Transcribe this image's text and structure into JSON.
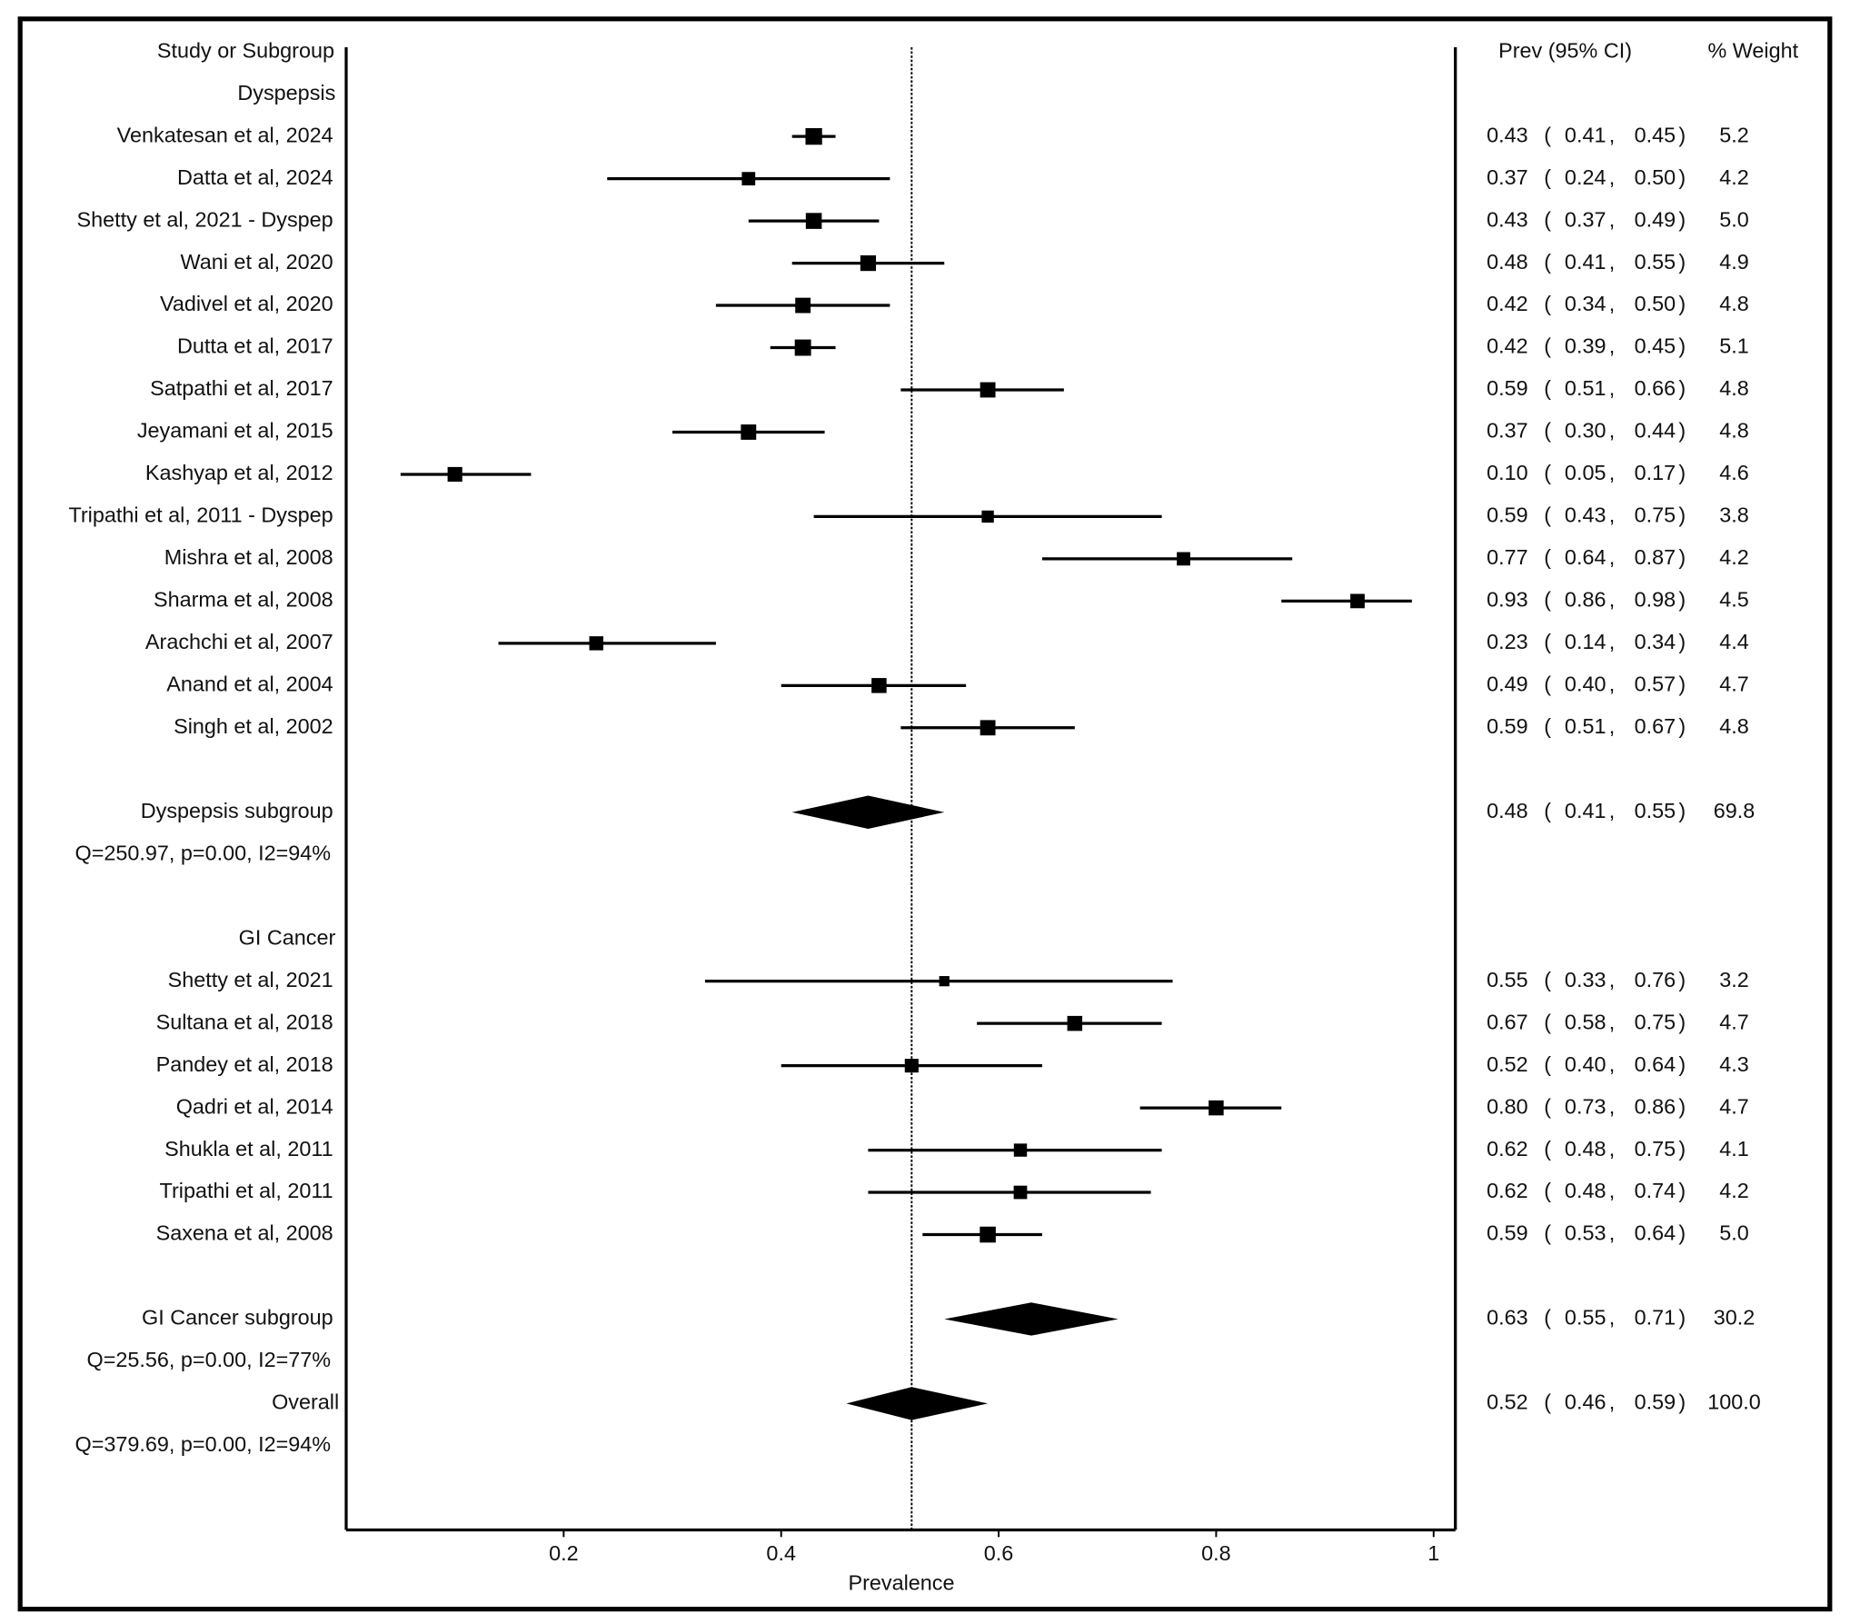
{
  "header": {
    "study": "Study or Subgroup",
    "estimate": "Prev (95% CI)",
    "weight": "% Weight"
  },
  "chart_data": {
    "type": "forest",
    "x_label": "Prevalence",
    "xlim": [
      0,
      1.02
    ],
    "xticks": [
      0.2,
      0.4,
      0.6,
      0.8,
      1
    ],
    "groups": [
      {
        "name": "Dyspepsis",
        "studies": [
          {
            "label": "Venkatesan et al, 2024",
            "values": [
              0.43,
              0.41,
              0.45,
              5.2
            ],
            "value_labels": [
              "0.43",
              "0.41",
              "0.45",
              "5.2"
            ]
          },
          {
            "label": "Datta et al, 2024",
            "values": [
              0.37,
              0.24,
              0.5,
              4.2
            ],
            "value_labels": [
              "0.37",
              "0.24",
              "0.50",
              "4.2"
            ]
          },
          {
            "label": "Shetty et al, 2021 - Dyspep",
            "values": [
              0.43,
              0.37,
              0.49,
              5
            ],
            "value_labels": [
              "0.43",
              "0.37",
              "0.49",
              "5.0"
            ]
          },
          {
            "label": "Wani et al, 2020",
            "values": [
              0.48,
              0.41,
              0.55,
              4.9
            ],
            "value_labels": [
              "0.48",
              "0.41",
              "0.55",
              "4.9"
            ]
          },
          {
            "label": "Vadivel et al, 2020",
            "values": [
              0.42,
              0.34,
              0.5,
              4.8
            ],
            "value_labels": [
              "0.42",
              "0.34",
              "0.50",
              "4.8"
            ]
          },
          {
            "label": "Dutta et al, 2017",
            "values": [
              0.42,
              0.39,
              0.45,
              5.1
            ],
            "value_labels": [
              "0.42",
              "0.39",
              "0.45",
              "5.1"
            ]
          },
          {
            "label": "Satpathi et al, 2017",
            "values": [
              0.59,
              0.51,
              0.66,
              4.8
            ],
            "value_labels": [
              "0.59",
              "0.51",
              "0.66",
              "4.8"
            ]
          },
          {
            "label": "Jeyamani et al, 2015",
            "values": [
              0.37,
              0.3,
              0.44,
              4.8
            ],
            "value_labels": [
              "0.37",
              "0.30",
              "0.44",
              "4.8"
            ]
          },
          {
            "label": "Kashyap et al, 2012",
            "values": [
              0.1,
              0.05,
              0.17,
              4.6
            ],
            "value_labels": [
              "0.10",
              "0.05",
              "0.17",
              "4.6"
            ]
          },
          {
            "label": "Tripathi et al, 2011 - Dyspep",
            "values": [
              0.59,
              0.43,
              0.75,
              3.8
            ],
            "value_labels": [
              "0.59",
              "0.43",
              "0.75",
              "3.8"
            ]
          },
          {
            "label": "Mishra et al, 2008",
            "values": [
              0.77,
              0.64,
              0.87,
              4.2
            ],
            "value_labels": [
              "0.77",
              "0.64",
              "0.87",
              "4.2"
            ]
          },
          {
            "label": "Sharma et al, 2008",
            "values": [
              0.93,
              0.86,
              0.98,
              4.5
            ],
            "value_labels": [
              "0.93",
              "0.86",
              "0.98",
              "4.5"
            ]
          },
          {
            "label": "Arachchi et al, 2007",
            "values": [
              0.23,
              0.14,
              0.34,
              4.4
            ],
            "value_labels": [
              "0.23",
              "0.14",
              "0.34",
              "4.4"
            ]
          },
          {
            "label": "Anand et al, 2004",
            "values": [
              0.49,
              0.4,
              0.57,
              4.7
            ],
            "value_labels": [
              "0.49",
              "0.40",
              "0.57",
              "4.7"
            ]
          },
          {
            "label": "Singh et al, 2002",
            "values": [
              0.59,
              0.51,
              0.67,
              4.8
            ],
            "value_labels": [
              "0.59",
              "0.51",
              "0.67",
              "4.8"
            ]
          }
        ],
        "subgroup": {
          "label": "Dyspepsis subgroup",
          "values": [
            0.48,
            0.41,
            0.55,
            69.8
          ],
          "value_labels": [
            "0.48",
            "0.41",
            "0.55",
            "69.8"
          ]
        },
        "heterogeneity": "Q=250.97, p=0.00, I2=94%"
      },
      {
        "name": "GI Cancer",
        "studies": [
          {
            "label": "Shetty et al, 2021",
            "values": [
              0.55,
              0.33,
              0.76,
              3.2
            ],
            "value_labels": [
              "0.55",
              "0.33",
              "0.76",
              "3.2"
            ]
          },
          {
            "label": "Sultana et al, 2018",
            "values": [
              0.67,
              0.58,
              0.75,
              4.7
            ],
            "value_labels": [
              "0.67",
              "0.58",
              "0.75",
              "4.7"
            ]
          },
          {
            "label": "Pandey et al, 2018",
            "values": [
              0.52,
              0.4,
              0.64,
              4.3
            ],
            "value_labels": [
              "0.52",
              "0.40",
              "0.64",
              "4.3"
            ]
          },
          {
            "label": "Qadri et al, 2014",
            "values": [
              0.8,
              0.73,
              0.86,
              4.7
            ],
            "value_labels": [
              "0.80",
              "0.73",
              "0.86",
              "4.7"
            ]
          },
          {
            "label": "Shukla et al, 2011",
            "values": [
              0.62,
              0.48,
              0.75,
              4.1
            ],
            "value_labels": [
              "0.62",
              "0.48",
              "0.75",
              "4.1"
            ]
          },
          {
            "label": "Tripathi et al, 2011",
            "values": [
              0.62,
              0.48,
              0.74,
              4.2
            ],
            "value_labels": [
              "0.62",
              "0.48",
              "0.74",
              "4.2"
            ]
          },
          {
            "label": "Saxena et al, 2008",
            "values": [
              0.59,
              0.53,
              0.64,
              5
            ],
            "value_labels": [
              "0.59",
              "0.53",
              "0.64",
              "5.0"
            ]
          }
        ],
        "subgroup": {
          "label": "GI Cancer subgroup",
          "values": [
            0.63,
            0.55,
            0.71,
            30.2
          ],
          "value_labels": [
            "0.63",
            "0.55",
            "0.71",
            "30.2"
          ]
        },
        "heterogeneity": "Q=25.56, p=0.00, I2=77%"
      }
    ],
    "overall": {
      "label": "Overall",
      "values": [
        0.52,
        0.46,
        0.59,
        100
      ],
      "value_labels": [
        "0.52",
        "0.46",
        "0.59",
        "100.0"
      ],
      "heterogeneity": "Q=379.69, p=0.00, I2=94%"
    }
  }
}
